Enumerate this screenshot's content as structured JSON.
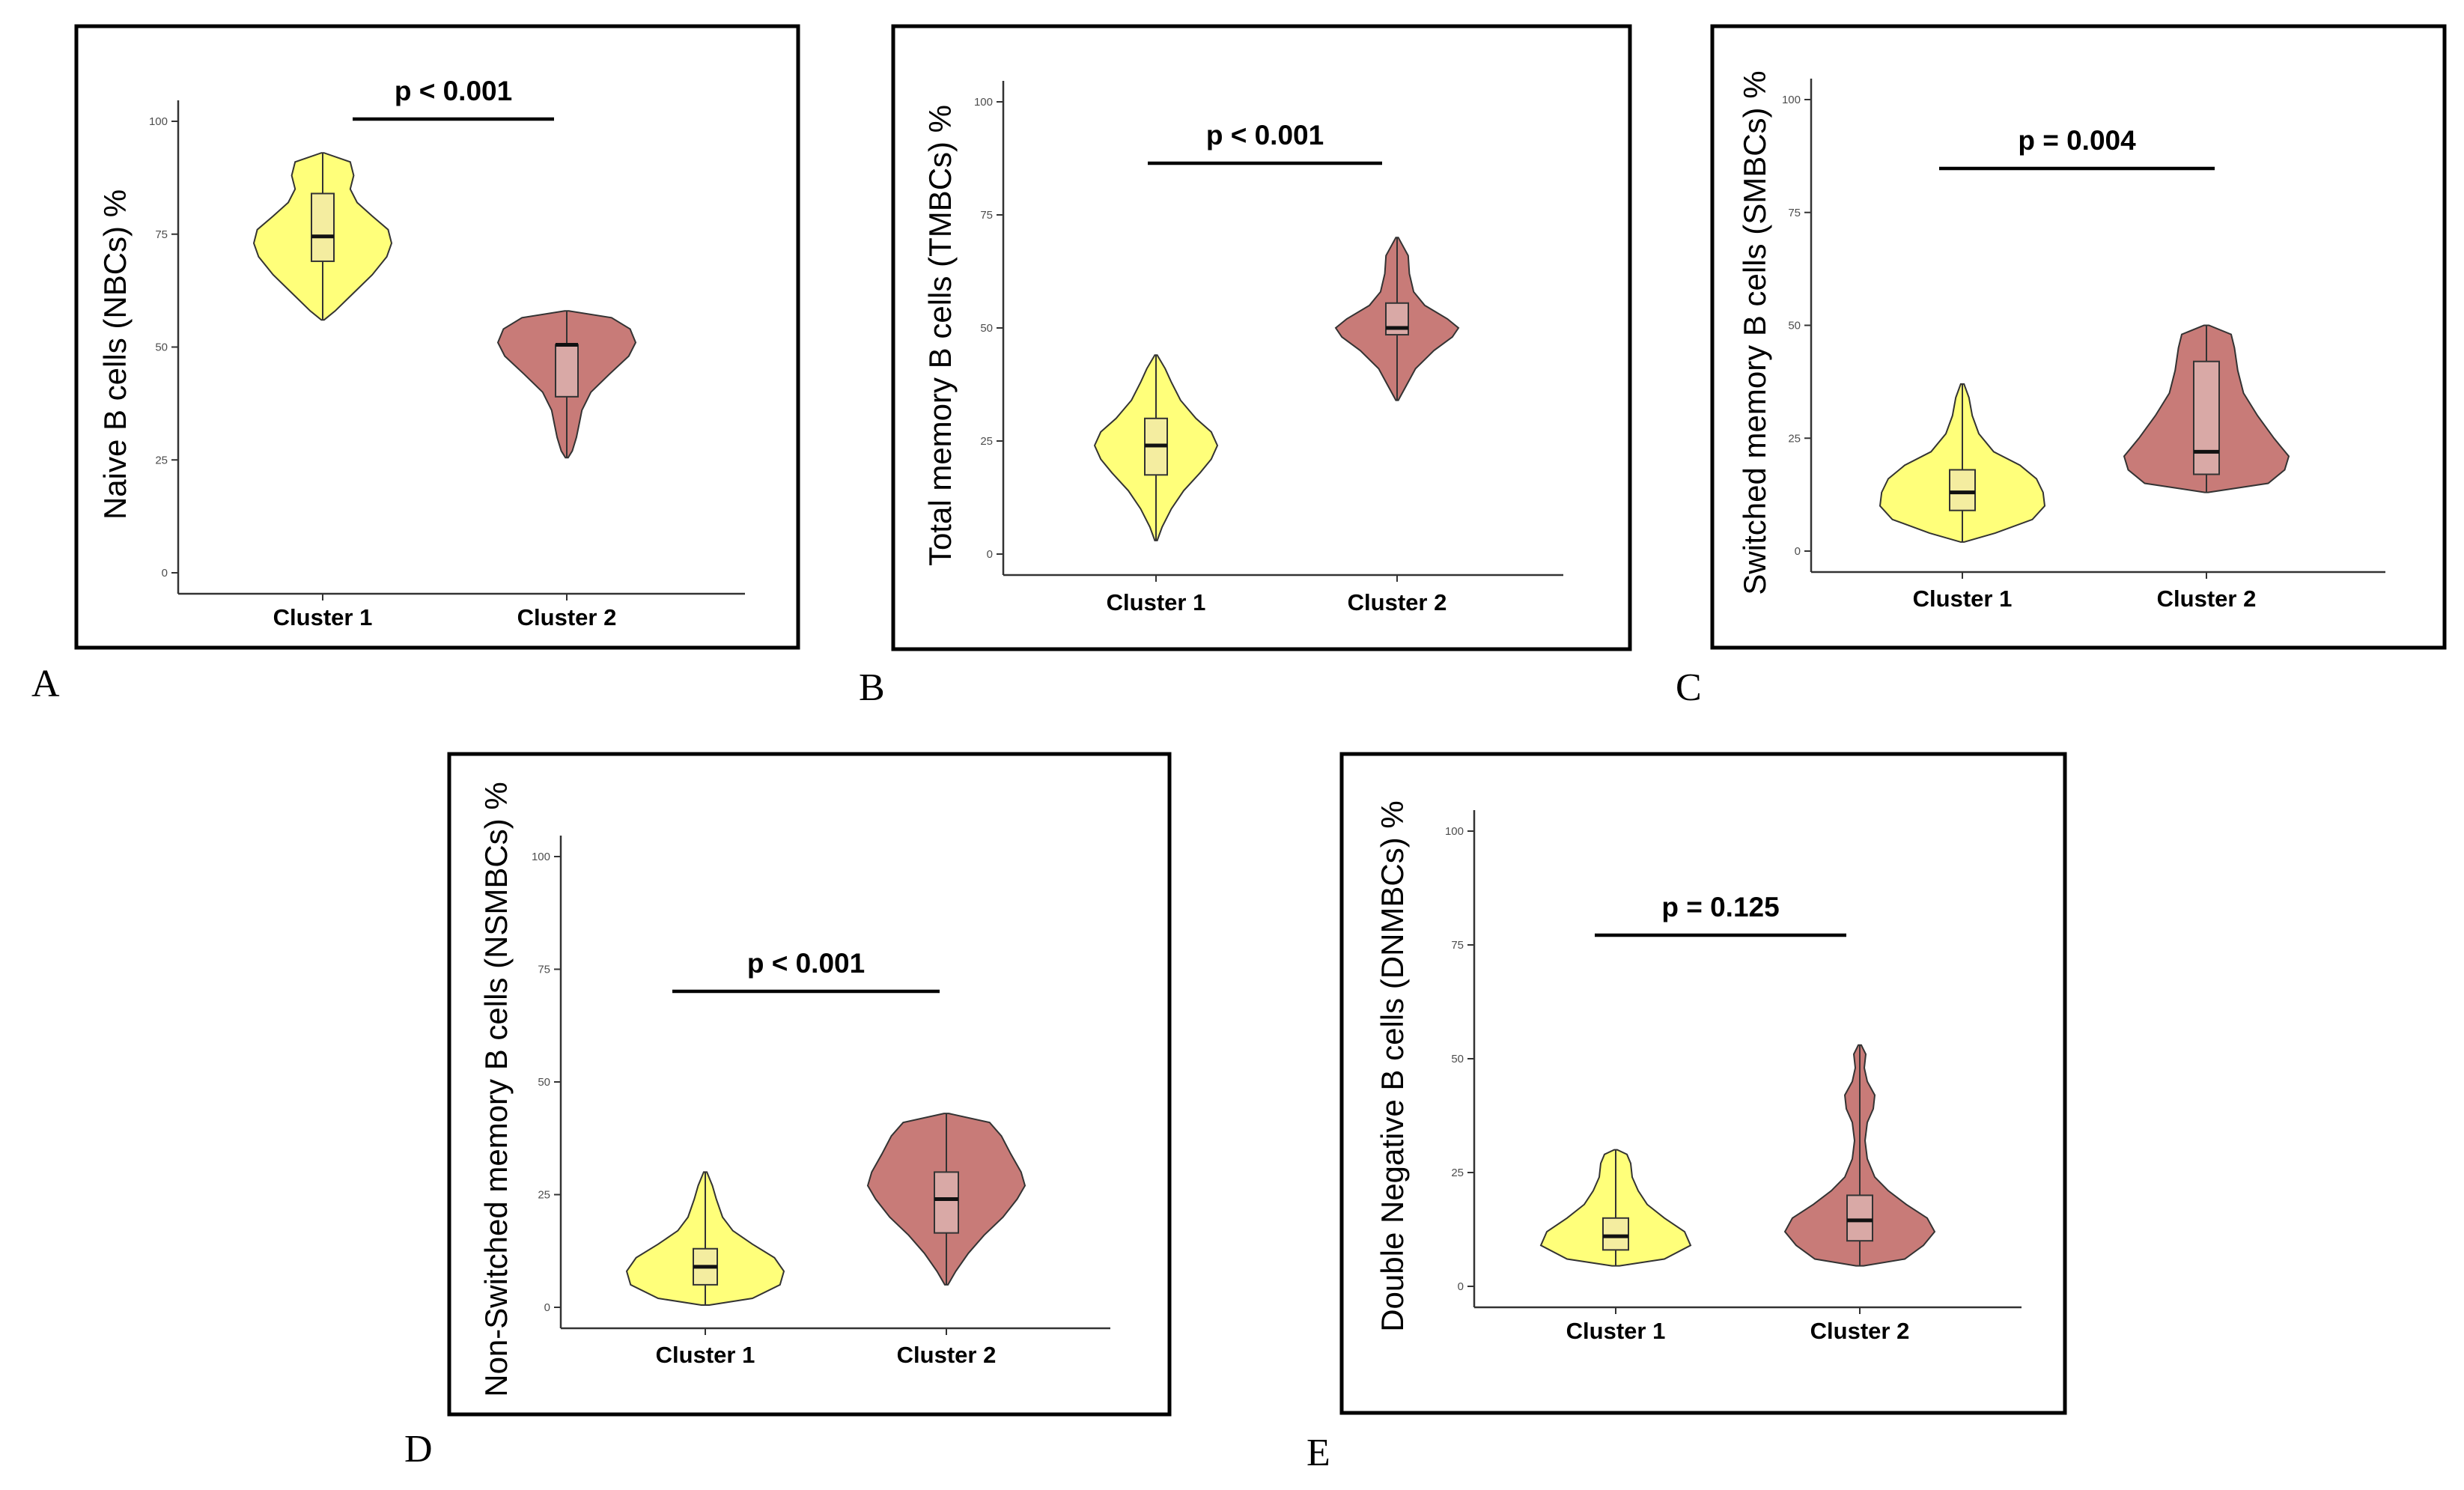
{
  "figure": {
    "panel_letters": [
      "A",
      "B",
      "C",
      "D",
      "E"
    ]
  },
  "colors": {
    "cluster1_fill": "#ffff7a",
    "cluster1_box": "#f4eda0",
    "cluster2_fill": "#c87b78",
    "cluster2_box": "#d9a9a6"
  },
  "chart_data": [
    {
      "type": "violin",
      "panel": "A",
      "ylabel": "Naive B cells (NBCs) %",
      "categories": [
        "Cluster 1",
        "Cluster 2"
      ],
      "yticks": [
        0,
        25,
        50,
        75,
        100
      ],
      "ylim": [
        0,
        100
      ],
      "p_label": "p < 0.001",
      "series": [
        {
          "name": "Cluster 1",
          "min": 56,
          "q1": 69,
          "median": 74.5,
          "q3": 84,
          "max": 93,
          "density": [
            [
              56,
              0.02
            ],
            [
              58,
              0.18
            ],
            [
              62,
              0.45
            ],
            [
              66,
              0.72
            ],
            [
              70,
              0.93
            ],
            [
              73,
              1.0
            ],
            [
              76,
              0.95
            ],
            [
              79,
              0.72
            ],
            [
              82,
              0.5
            ],
            [
              85,
              0.4
            ],
            [
              88,
              0.45
            ],
            [
              91,
              0.4
            ],
            [
              93,
              0.02
            ]
          ]
        },
        {
          "name": "Cluster 2",
          "min": 25.5,
          "q1": 39,
          "median": 50.5,
          "q3": 50.5,
          "max": 58,
          "density": [
            [
              25.5,
              0.02
            ],
            [
              27,
              0.08
            ],
            [
              30,
              0.14
            ],
            [
              33,
              0.18
            ],
            [
              36,
              0.22
            ],
            [
              40,
              0.35
            ],
            [
              44,
              0.62
            ],
            [
              48,
              0.9
            ],
            [
              51,
              1.0
            ],
            [
              54,
              0.92
            ],
            [
              56.5,
              0.65
            ],
            [
              58,
              0.03
            ]
          ]
        }
      ]
    },
    {
      "type": "violin",
      "panel": "B",
      "ylabel": "Total memory B cells (TMBCs) %",
      "categories": [
        "Cluster 1",
        "Cluster 2"
      ],
      "yticks": [
        0,
        25,
        50,
        75,
        100
      ],
      "ylim": [
        0,
        100
      ],
      "p_label": "p < 0.001",
      "series": [
        {
          "name": "Cluster 1",
          "min": 3,
          "q1": 17.5,
          "median": 24,
          "q3": 30,
          "max": 44,
          "density": [
            [
              3,
              0.02
            ],
            [
              6,
              0.1
            ],
            [
              10,
              0.25
            ],
            [
              14,
              0.45
            ],
            [
              18,
              0.72
            ],
            [
              21,
              0.9
            ],
            [
              24,
              1.0
            ],
            [
              27,
              0.9
            ],
            [
              30,
              0.65
            ],
            [
              34,
              0.4
            ],
            [
              38,
              0.25
            ],
            [
              41,
              0.15
            ],
            [
              44,
              0.02
            ]
          ]
        },
        {
          "name": "Cluster 2",
          "min": 34,
          "q1": 48.5,
          "median": 50,
          "q3": 55.5,
          "max": 70,
          "density": [
            [
              34,
              0.02
            ],
            [
              37,
              0.14
            ],
            [
              41,
              0.3
            ],
            [
              45,
              0.6
            ],
            [
              48,
              0.9
            ],
            [
              50,
              1.0
            ],
            [
              52,
              0.82
            ],
            [
              55,
              0.45
            ],
            [
              58,
              0.27
            ],
            [
              62,
              0.2
            ],
            [
              66,
              0.18
            ],
            [
              70,
              0.02
            ]
          ]
        }
      ]
    },
    {
      "type": "violin",
      "panel": "C",
      "ylabel": "Switched memory B cells (SMBCs) %",
      "categories": [
        "Cluster 1",
        "Cluster 2"
      ],
      "yticks": [
        0,
        25,
        50,
        75,
        100
      ],
      "ylim": [
        0,
        100
      ],
      "p_label": "p = 0.004",
      "series": [
        {
          "name": "Cluster 1",
          "min": 2,
          "q1": 9,
          "median": 13,
          "q3": 18,
          "max": 37,
          "density": [
            [
              2,
              0.02
            ],
            [
              4,
              0.4
            ],
            [
              7,
              0.85
            ],
            [
              10,
              1.0
            ],
            [
              13,
              0.98
            ],
            [
              16,
              0.9
            ],
            [
              19,
              0.7
            ],
            [
              22,
              0.38
            ],
            [
              26,
              0.2
            ],
            [
              30,
              0.12
            ],
            [
              34,
              0.08
            ],
            [
              37,
              0.02
            ]
          ]
        },
        {
          "name": "Cluster 2",
          "min": 13,
          "q1": 17,
          "median": 22,
          "q3": 42,
          "max": 50,
          "density": [
            [
              13,
              0.02
            ],
            [
              15,
              0.75
            ],
            [
              18,
              0.95
            ],
            [
              21,
              1.0
            ],
            [
              25,
              0.82
            ],
            [
              30,
              0.62
            ],
            [
              35,
              0.45
            ],
            [
              40,
              0.38
            ],
            [
              45,
              0.34
            ],
            [
              48,
              0.3
            ],
            [
              50,
              0.03
            ]
          ]
        }
      ]
    },
    {
      "type": "violin",
      "panel": "D",
      "ylabel": "Non-Switched memory B cells (NSMBCs) %",
      "categories": [
        "Cluster 1",
        "Cluster 2"
      ],
      "yticks": [
        0,
        25,
        50,
        75,
        100
      ],
      "ylim": [
        0,
        100
      ],
      "p_label": "p < 0.001",
      "series": [
        {
          "name": "Cluster 1",
          "min": 0.5,
          "q1": 5,
          "median": 9,
          "q3": 13,
          "max": 30,
          "density": [
            [
              0.5,
              0.05
            ],
            [
              2,
              0.6
            ],
            [
              5,
              0.95
            ],
            [
              8,
              1.0
            ],
            [
              11,
              0.88
            ],
            [
              14,
              0.6
            ],
            [
              17,
              0.35
            ],
            [
              20,
              0.22
            ],
            [
              24,
              0.14
            ],
            [
              27,
              0.09
            ],
            [
              30,
              0.02
            ]
          ]
        },
        {
          "name": "Cluster 2",
          "min": 5,
          "q1": 16.5,
          "median": 24,
          "q3": 30,
          "max": 43,
          "density": [
            [
              5,
              0.02
            ],
            [
              8,
              0.12
            ],
            [
              12,
              0.28
            ],
            [
              16,
              0.48
            ],
            [
              20,
              0.72
            ],
            [
              24,
              0.9
            ],
            [
              27,
              1.0
            ],
            [
              30,
              0.95
            ],
            [
              34,
              0.82
            ],
            [
              38,
              0.7
            ],
            [
              41,
              0.55
            ],
            [
              43,
              0.03
            ]
          ]
        }
      ]
    },
    {
      "type": "violin",
      "panel": "E",
      "ylabel": "Double Negative B cells (DNMBCs) %",
      "categories": [
        "Cluster 1",
        "Cluster 2"
      ],
      "yticks": [
        0,
        25,
        50,
        75,
        100
      ],
      "ylim": [
        0,
        100
      ],
      "p_label": "p = 0.125",
      "series": [
        {
          "name": "Cluster 1",
          "min": 4.5,
          "q1": 8,
          "median": 11,
          "q3": 15,
          "max": 30,
          "density": [
            [
              4.5,
              0.05
            ],
            [
              6,
              0.65
            ],
            [
              9,
              1.0
            ],
            [
              12,
              0.92
            ],
            [
              15,
              0.65
            ],
            [
              18,
              0.42
            ],
            [
              21,
              0.3
            ],
            [
              24,
              0.22
            ],
            [
              27,
              0.2
            ],
            [
              29,
              0.15
            ],
            [
              30,
              0.02
            ]
          ]
        },
        {
          "name": "Cluster 2",
          "min": 4.5,
          "q1": 10,
          "median": 14.5,
          "q3": 20,
          "max": 53,
          "density": [
            [
              4.5,
              0.05
            ],
            [
              6,
              0.6
            ],
            [
              9,
              0.85
            ],
            [
              12,
              1.0
            ],
            [
              15,
              0.9
            ],
            [
              18,
              0.62
            ],
            [
              21,
              0.38
            ],
            [
              24,
              0.2
            ],
            [
              28,
              0.1
            ],
            [
              32,
              0.07
            ],
            [
              36,
              0.1
            ],
            [
              39,
              0.18
            ],
            [
              42,
              0.2
            ],
            [
              45,
              0.1
            ],
            [
              48,
              0.06
            ],
            [
              51,
              0.08
            ],
            [
              53,
              0.02
            ]
          ]
        }
      ]
    }
  ]
}
